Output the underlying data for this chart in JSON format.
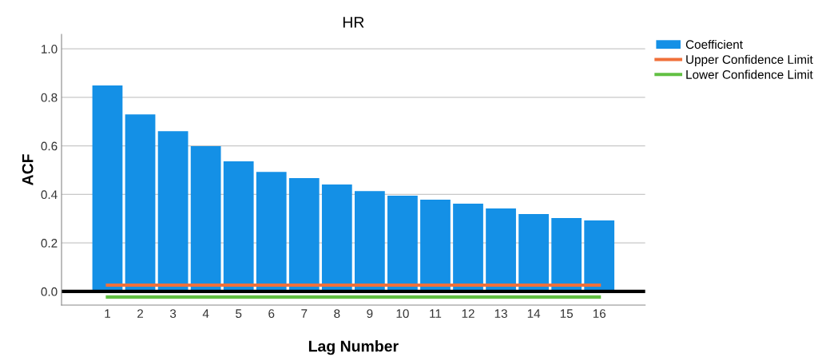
{
  "chart_data": {
    "type": "bar",
    "title": "HR",
    "xlabel": "Lag Number",
    "ylabel": "ACF",
    "categories": [
      "1",
      "2",
      "3",
      "4",
      "5",
      "6",
      "7",
      "8",
      "9",
      "10",
      "11",
      "12",
      "13",
      "14",
      "15",
      "16"
    ],
    "series": [
      {
        "name": "Coefficient",
        "color": "#1490e6",
        "values": [
          0.849,
          0.73,
          0.661,
          0.599,
          0.536,
          0.493,
          0.467,
          0.441,
          0.414,
          0.395,
          0.378,
          0.362,
          0.342,
          0.319,
          0.303,
          0.293
        ]
      },
      {
        "name": "Upper Confidence Limit",
        "type": "line",
        "color": "#f0703a",
        "values": [
          0.026,
          0.026,
          0.026,
          0.026,
          0.026,
          0.026,
          0.026,
          0.026,
          0.026,
          0.026,
          0.026,
          0.026,
          0.026,
          0.026,
          0.026,
          0.026
        ]
      },
      {
        "name": "Lower Confidence Limit",
        "type": "line",
        "color": "#62c043",
        "values": [
          -0.023,
          -0.023,
          -0.023,
          -0.023,
          -0.023,
          -0.023,
          -0.023,
          -0.023,
          -0.023,
          -0.023,
          -0.023,
          -0.023,
          -0.023,
          -0.023,
          -0.023,
          -0.023
        ]
      }
    ],
    "ylim": [
      -0.056,
      1.06
    ],
    "yticks": [
      {
        "value": 0,
        "label": "0.0"
      },
      {
        "value": 0.2,
        "label": "0.2"
      },
      {
        "value": 0.4,
        "label": "0.4"
      },
      {
        "value": 0.6,
        "label": "0.6"
      },
      {
        "value": 0.8,
        "label": "0.8"
      },
      {
        "value": 1.0,
        "label": "1.0"
      }
    ],
    "ref_lines": [
      {
        "axis": "y",
        "value": 0,
        "color": "#000000"
      }
    ],
    "grid": "y",
    "legend": "top right"
  }
}
